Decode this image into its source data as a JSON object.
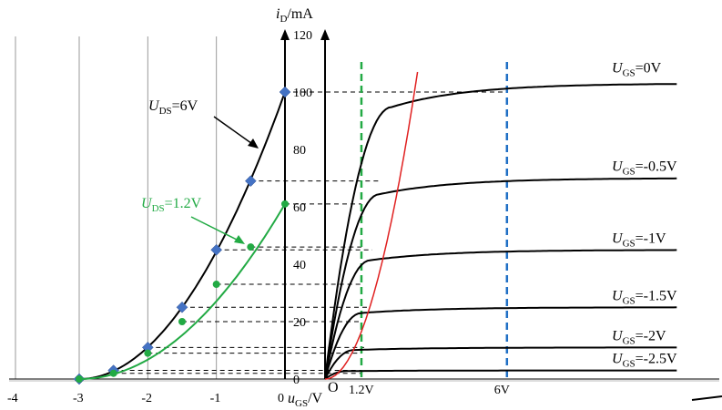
{
  "chart_data": [
    {
      "type": "line",
      "name": "transfer-characteristic",
      "xlabel": "uGS/V",
      "ylabel": "iD/mA",
      "xlim": [
        -4,
        0
      ],
      "ylim": [
        0,
        120
      ],
      "x_ticks": [
        "-4",
        "-3",
        "-2",
        "-1",
        "0"
      ],
      "y_ticks": [
        "0",
        "20",
        "40",
        "60",
        "80",
        "100",
        "120"
      ],
      "grid": "vertical",
      "series": [
        {
          "name": "UDS=6V",
          "color": "#000000",
          "marker": "diamond",
          "marker_color": "#4472c4",
          "x": [
            -3,
            -2.5,
            -2,
            -1.5,
            -1,
            -0.5,
            0
          ],
          "y": [
            0,
            3,
            11,
            25,
            45,
            69,
            100
          ]
        },
        {
          "name": "UDS=1.2V",
          "color": "#22aa44",
          "marker": "circle",
          "marker_color": "#22aa44",
          "x": [
            -3,
            -2.5,
            -2,
            -1.5,
            -1,
            -0.5,
            0
          ],
          "y": [
            0,
            2,
            9,
            20,
            33,
            46,
            61
          ]
        }
      ]
    },
    {
      "type": "line",
      "name": "output-characteristic",
      "xlabel": "",
      "ylabel": "",
      "ylim": [
        0,
        120
      ],
      "x_markers": [
        {
          "label": "1.2V",
          "x": 1.2,
          "color": "#22aa44",
          "style": "dashed"
        },
        {
          "label": "6V",
          "x": 6,
          "color": "#1f6fc5",
          "style": "dashed"
        }
      ],
      "origin_label": "O",
      "series": [
        {
          "name": "UGS=0V",
          "saturation_value": 103
        },
        {
          "name": "UGS=-0.5V",
          "saturation_value": 70
        },
        {
          "name": "UGS=-1V",
          "saturation_value": 45
        },
        {
          "name": "UGS=-1.5V",
          "saturation_value": 25
        },
        {
          "name": "UGS=-2V",
          "saturation_value": 11
        },
        {
          "name": "UGS=-2.5V",
          "saturation_value": 3
        }
      ],
      "pinch_off_curve_color": "#e02020"
    }
  ]
}
